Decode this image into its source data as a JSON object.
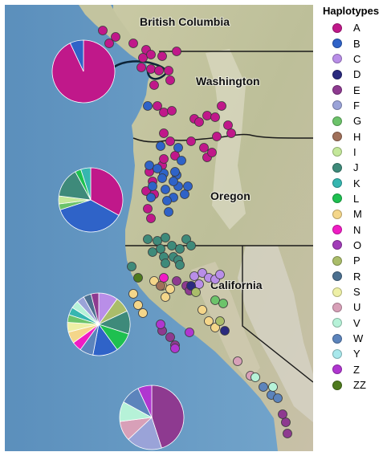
{
  "legend": {
    "title": "Haplotypes",
    "items": [
      {
        "label": "A",
        "color": "#c0188a"
      },
      {
        "label": "B",
        "color": "#2f63c8"
      },
      {
        "label": "C",
        "color": "#b98ee8"
      },
      {
        "label": "D",
        "color": "#2a2a7e"
      },
      {
        "label": "E",
        "color": "#8e3a90"
      },
      {
        "label": "F",
        "color": "#9aa3d8"
      },
      {
        "label": "G",
        "color": "#6cc36a"
      },
      {
        "label": "H",
        "color": "#a0705a"
      },
      {
        "label": "I",
        "color": "#c4e89a"
      },
      {
        "label": "J",
        "color": "#3e8a7a"
      },
      {
        "label": "K",
        "color": "#36b6b0"
      },
      {
        "label": "L",
        "color": "#1ec050"
      },
      {
        "label": "M",
        "color": "#f4d68a"
      },
      {
        "label": "N",
        "color": "#f01cc4"
      },
      {
        "label": "O",
        "color": "#a13cb8"
      },
      {
        "label": "P",
        "color": "#aabd6a"
      },
      {
        "label": "R",
        "color": "#4c7090"
      },
      {
        "label": "S",
        "color": "#eef0a6"
      },
      {
        "label": "U",
        "color": "#d8a0b8"
      },
      {
        "label": "V",
        "color": "#b6f2d8"
      },
      {
        "label": "W",
        "color": "#5c84bc"
      },
      {
        "label": "Y",
        "color": "#a8e8ec"
      },
      {
        "label": "Z",
        "color": "#b036d0"
      },
      {
        "label": "ZZ",
        "color": "#4e7a1e"
      }
    ]
  },
  "map": {
    "regions": [
      {
        "name": "British Columbia"
      },
      {
        "name": "Washington"
      },
      {
        "name": "Oregon"
      },
      {
        "name": "California"
      }
    ],
    "pies": [
      {
        "slices": [
          {
            "haplotype": "A",
            "value": 93
          },
          {
            "haplotype": "B",
            "value": 7
          }
        ]
      },
      {
        "slices": [
          {
            "haplotype": "A",
            "value": 33
          },
          {
            "haplotype": "B",
            "value": 37
          },
          {
            "haplotype": "G",
            "value": 3
          },
          {
            "haplotype": "I",
            "value": 4
          },
          {
            "haplotype": "J",
            "value": 15
          },
          {
            "haplotype": "L",
            "value": 3
          },
          {
            "haplotype": "K",
            "value": 5
          }
        ]
      },
      {
        "slices": [
          {
            "haplotype": "C",
            "value": 10
          },
          {
            "haplotype": "P",
            "value": 8
          },
          {
            "haplotype": "J",
            "value": 12
          },
          {
            "haplotype": "L",
            "value": 10
          },
          {
            "haplotype": "B",
            "value": 13
          },
          {
            "haplotype": "W",
            "value": 7
          },
          {
            "haplotype": "N",
            "value": 5
          },
          {
            "haplotype": "M",
            "value": 6
          },
          {
            "haplotype": "S",
            "value": 5
          },
          {
            "haplotype": "G",
            "value": 4
          },
          {
            "haplotype": "K",
            "value": 4
          },
          {
            "haplotype": "V",
            "value": 4
          },
          {
            "haplotype": "F",
            "value": 4
          },
          {
            "haplotype": "R",
            "value": 4
          },
          {
            "haplotype": "E",
            "value": 4
          }
        ]
      },
      {
        "slices": [
          {
            "haplotype": "E",
            "value": 45
          },
          {
            "haplotype": "F",
            "value": 18
          },
          {
            "haplotype": "U",
            "value": 10
          },
          {
            "haplotype": "V",
            "value": 10
          },
          {
            "haplotype": "W",
            "value": 10
          },
          {
            "haplotype": "Z",
            "value": 7
          }
        ]
      }
    ],
    "sample_sites": [
      {
        "haplotype": "A",
        "count": 41
      },
      {
        "haplotype": "B",
        "count": 20
      },
      {
        "haplotype": "J",
        "count": 15
      },
      {
        "haplotype": "M",
        "count": 10
      },
      {
        "haplotype": "C",
        "count": 6
      },
      {
        "haplotype": "E",
        "count": 9
      },
      {
        "haplotype": "D",
        "count": 2
      },
      {
        "haplotype": "N",
        "count": 1
      },
      {
        "haplotype": "G",
        "count": 2
      },
      {
        "haplotype": "W",
        "count": 3
      },
      {
        "haplotype": "U",
        "count": 2
      },
      {
        "haplotype": "V",
        "count": 2
      },
      {
        "haplotype": "Z",
        "count": 3
      },
      {
        "haplotype": "H",
        "count": 1
      },
      {
        "haplotype": "P",
        "count": 2
      },
      {
        "haplotype": "ZZ",
        "count": 1
      }
    ]
  }
}
